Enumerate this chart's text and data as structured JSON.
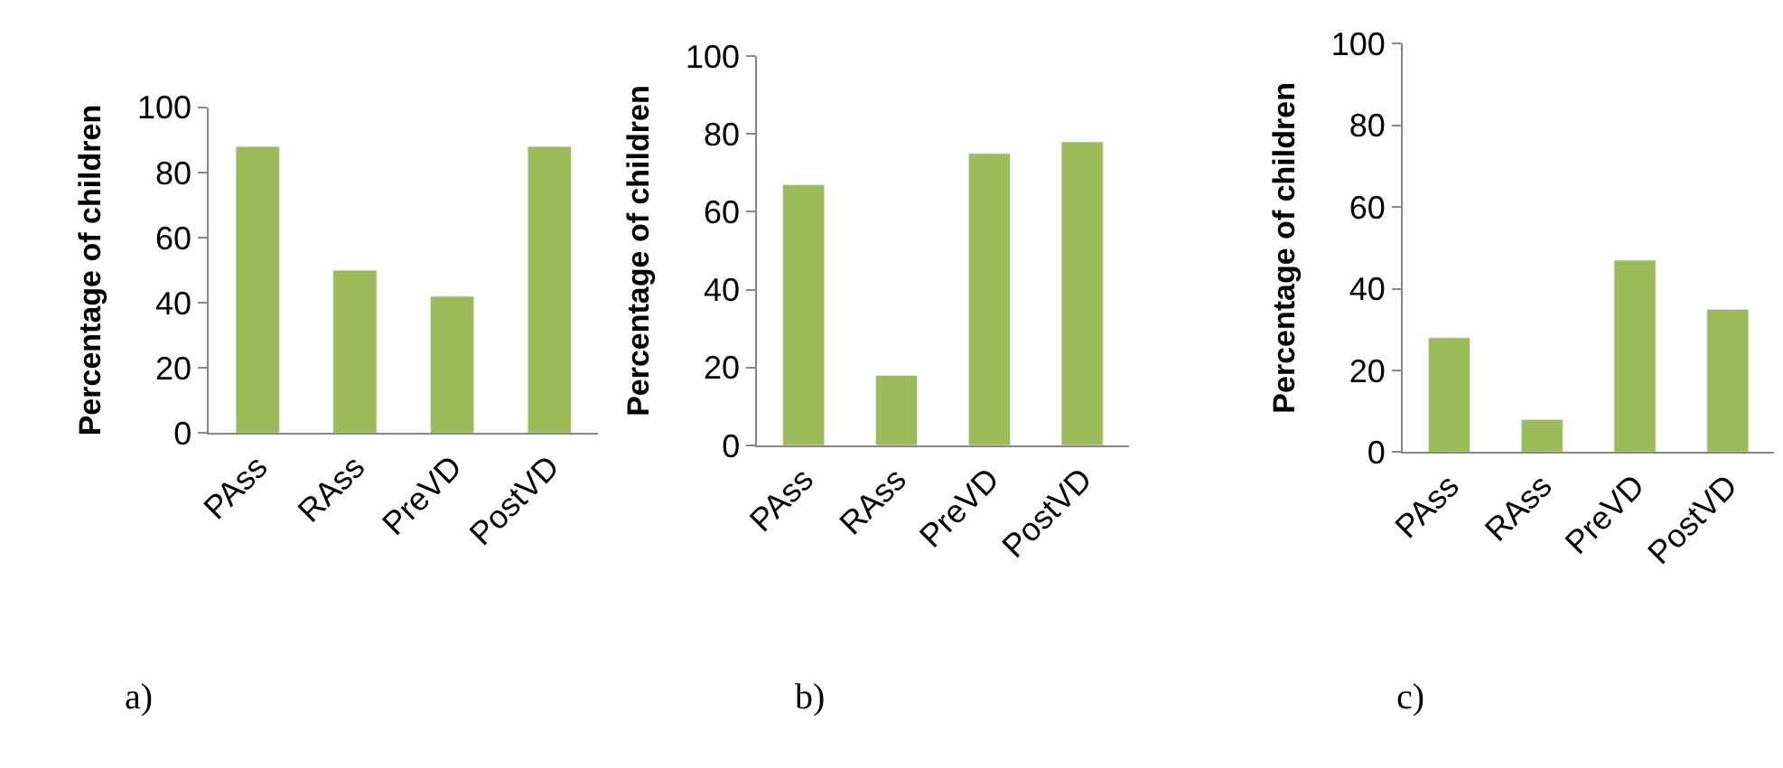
{
  "chart_data": [
    {
      "type": "bar",
      "ylabel": "Percentage of children",
      "categories": [
        "PAss",
        "RAss",
        "PreVD",
        "PostVD"
      ],
      "values": [
        88,
        50,
        42,
        88
      ],
      "color": "#9bbb59",
      "ylim": [
        0,
        100
      ],
      "yticks": [
        0,
        20,
        40,
        60,
        80,
        100
      ],
      "annotations": [
        "a)"
      ]
    },
    {
      "type": "bar",
      "ylabel": "Percentage of children",
      "categories": [
        "PAss",
        "RAss",
        "PreVD",
        "PostVD"
      ],
      "values": [
        67,
        18,
        75,
        78
      ],
      "color": "#9bbb59",
      "ylim": [
        0,
        100
      ],
      "yticks": [
        0,
        20,
        40,
        60,
        80,
        100
      ],
      "annotations": [
        "b)"
      ]
    },
    {
      "type": "bar",
      "ylabel": "Percentage of children",
      "categories": [
        "PAss",
        "RAss",
        "PreVD",
        "PostVD"
      ],
      "values": [
        28,
        8,
        47,
        35
      ],
      "color": "#9bbb59",
      "ylim": [
        0,
        100
      ],
      "yticks": [
        0,
        20,
        40,
        60,
        80,
        100
      ],
      "annotations": [
        "c)"
      ]
    }
  ]
}
